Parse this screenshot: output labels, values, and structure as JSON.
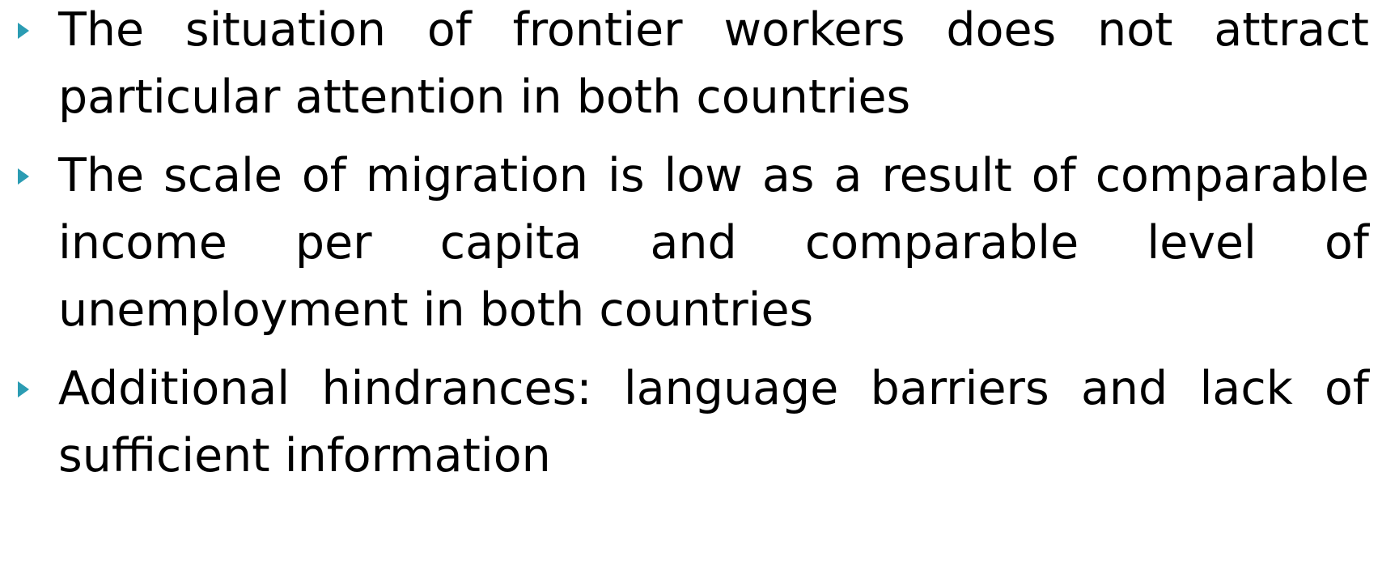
{
  "bullets": [
    "The situation of frontier workers does not attract particular attention in both countries",
    "The scale of migration is low as a result of comparable income per capita and comparable level of unemployment in both countries",
    "Additional hindrances: language barriers and lack of sufficient information"
  ]
}
